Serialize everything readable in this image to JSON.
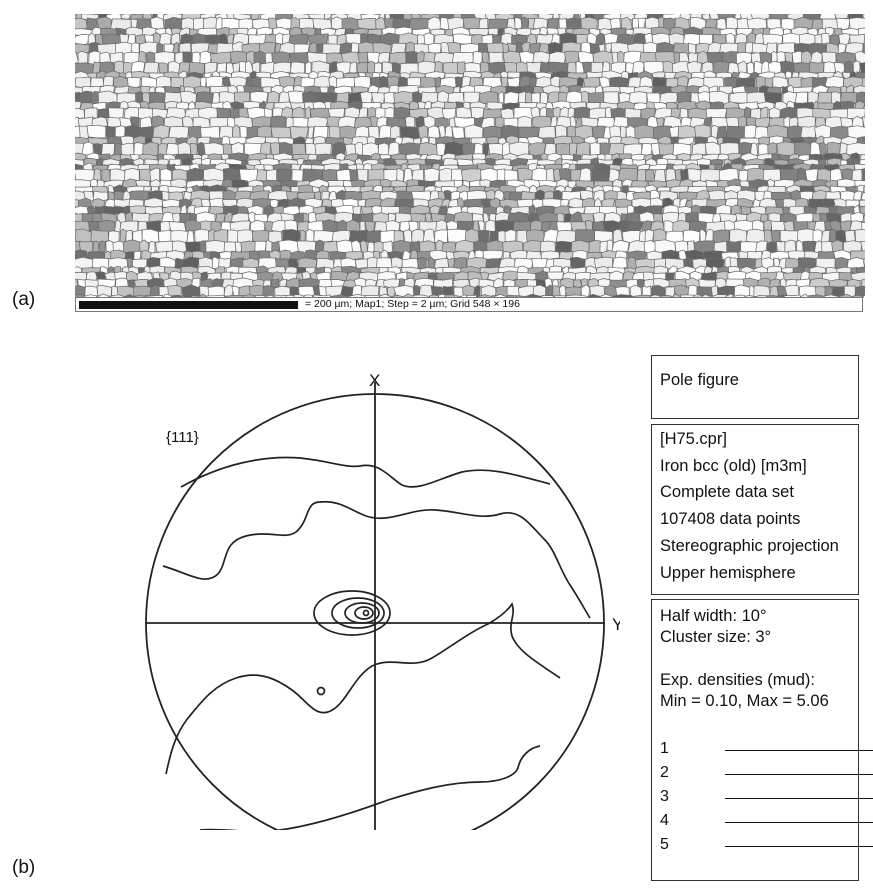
{
  "panel_a": {
    "label": "(a)",
    "scale_text": "= 200 µm; Map1; Step = 2 µm; Grid 548 × 196"
  },
  "panel_b": {
    "label": "(b)",
    "axis_x": "X",
    "axis_y": "Y",
    "plane_label": "{111}",
    "title_box": "Pole figure",
    "info_lines": [
      "[H75.cpr]",
      "Iron bcc (old) [m3m]",
      "Complete data set",
      "107408 data points",
      "Stereographic projection",
      "Upper hemisphere"
    ],
    "param_lines": [
      "Half width: 10°",
      "Cluster size: 3°"
    ],
    "density_lines": [
      "Exp. densities (mud):",
      "Min = 0.10, Max  = 5.06"
    ],
    "legend": [
      "1",
      "2",
      "3",
      "4",
      "5"
    ]
  }
}
